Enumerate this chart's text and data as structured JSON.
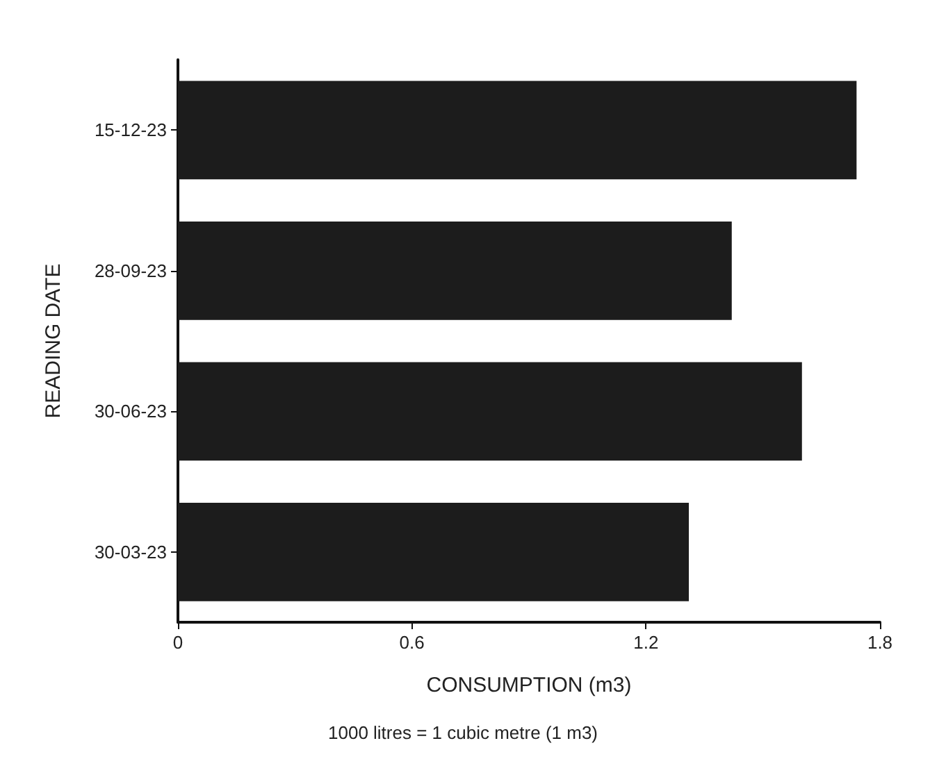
{
  "chart_data": {
    "type": "bar",
    "orientation": "horizontal",
    "categories": [
      "15-12-23",
      "28-09-23",
      "30-06-23",
      "30-03-23"
    ],
    "values": [
      1.74,
      1.42,
      1.6,
      1.31
    ],
    "color": "#1c1c1c",
    "xlim": [
      0,
      1.8
    ],
    "xticks": [
      0,
      0.6,
      1.2,
      1.8
    ],
    "xlabel": "CONSUMPTION (m3)",
    "ylabel": "READING DATE",
    "annotations": [
      "1000 litres = 1 cubic metre (1 m3)"
    ],
    "grid": false
  }
}
